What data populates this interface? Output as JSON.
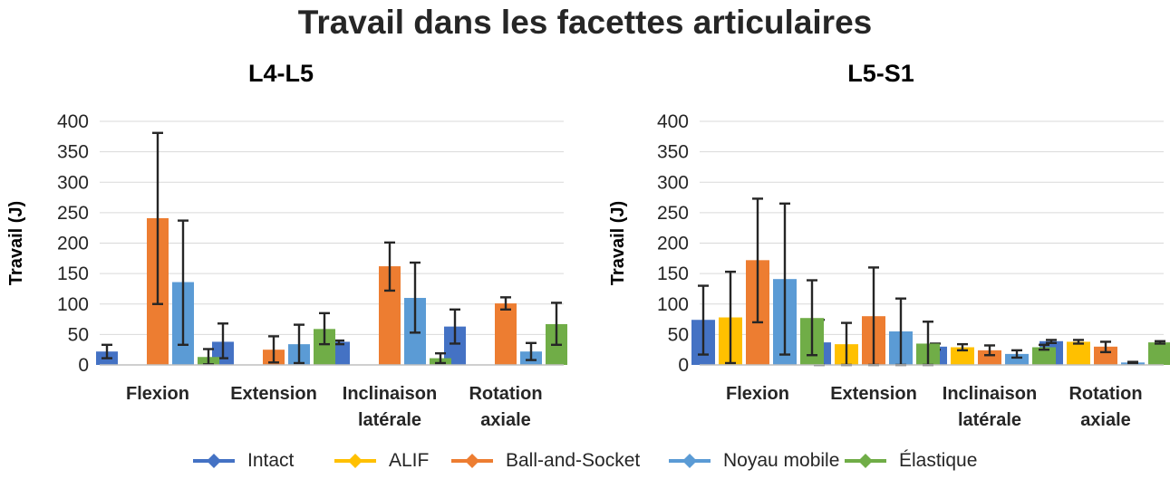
{
  "title": "Travail dans les facettes articulaires",
  "legend": [
    {
      "name": "Intact",
      "color": "#4472C4"
    },
    {
      "name": "ALIF",
      "color": "#FFC000"
    },
    {
      "name": "Ball-and-Socket",
      "color": "#ED7D31"
    },
    {
      "name": "Noyau mobile",
      "color": "#5B9BD5"
    },
    {
      "name": "Élastique",
      "color": "#70AD47"
    }
  ],
  "chart_data": [
    {
      "type": "bar",
      "title": "L4-L5",
      "ylabel": "Travail (J)",
      "xlabel": "",
      "ylim": [
        0,
        400
      ],
      "yticks": [
        0,
        50,
        100,
        150,
        200,
        250,
        300,
        350,
        400
      ],
      "categories": [
        [
          "Flexion"
        ],
        [
          "Extension"
        ],
        [
          "Inclinaison",
          "latérale"
        ],
        [
          "Rotation",
          "axiale"
        ]
      ],
      "series": [
        {
          "name": "Intact",
          "color": "#4472C4",
          "values": [
            22,
            38,
            38,
            63
          ],
          "err_low": [
            11,
            11,
            34,
            35
          ],
          "err_high": [
            33,
            68,
            40,
            91
          ]
        },
        {
          "name": "ALIF",
          "color": "#FFC000",
          "values": [
            null,
            null,
            null,
            null
          ],
          "err_low": [
            null,
            null,
            null,
            null
          ],
          "err_high": [
            null,
            null,
            null,
            null
          ]
        },
        {
          "name": "Ball-and-Socket",
          "color": "#ED7D31",
          "values": [
            241,
            25,
            162,
            101
          ],
          "err_low": [
            100,
            4,
            122,
            91
          ],
          "err_high": [
            381,
            47,
            201,
            111
          ]
        },
        {
          "name": "Noyau mobile",
          "color": "#5B9BD5",
          "values": [
            136,
            34,
            110,
            22
          ],
          "err_low": [
            33,
            3,
            53,
            8
          ],
          "err_high": [
            237,
            66,
            168,
            36
          ]
        },
        {
          "name": "Élastique",
          "color": "#70AD47",
          "values": [
            13,
            59,
            11,
            67
          ],
          "err_low": [
            1,
            34,
            3,
            33
          ],
          "err_high": [
            26,
            85,
            19,
            102
          ]
        }
      ]
    },
    {
      "type": "bar",
      "title": "L5-S1",
      "ylabel": "Travail (J)",
      "xlabel": "",
      "ylim": [
        0,
        400
      ],
      "yticks": [
        0,
        50,
        100,
        150,
        200,
        250,
        300,
        350,
        400
      ],
      "categories": [
        [
          "Flexion"
        ],
        [
          "Extension"
        ],
        [
          "Inclinaison",
          "latérale"
        ],
        [
          "Rotation",
          "axiale"
        ]
      ],
      "series": [
        {
          "name": "Intact",
          "color": "#4472C4",
          "values": [
            74,
            37,
            30,
            39
          ],
          "err_low": [
            17,
            0,
            25,
            36
          ],
          "err_high": [
            130,
            74,
            35,
            41
          ]
        },
        {
          "name": "ALIF",
          "color": "#FFC000",
          "values": [
            78,
            34,
            29,
            38
          ],
          "err_low": [
            3,
            0,
            24,
            35
          ],
          "err_high": [
            153,
            69,
            34,
            41
          ]
        },
        {
          "name": "Ball-and-Socket",
          "color": "#ED7D31",
          "values": [
            172,
            80,
            24,
            30
          ],
          "err_low": [
            70,
            0,
            16,
            21
          ],
          "err_high": [
            273,
            160,
            32,
            38
          ]
        },
        {
          "name": "Noyau mobile",
          "color": "#5B9BD5",
          "values": [
            141,
            55,
            18,
            4
          ],
          "err_low": [
            17,
            0,
            12,
            3
          ],
          "err_high": [
            265,
            109,
            24,
            5
          ]
        },
        {
          "name": "Élastique",
          "color": "#70AD47",
          "values": [
            77,
            35,
            29,
            37
          ],
          "err_low": [
            16,
            0,
            25,
            35
          ],
          "err_high": [
            139,
            71,
            33,
            39
          ]
        }
      ]
    }
  ]
}
